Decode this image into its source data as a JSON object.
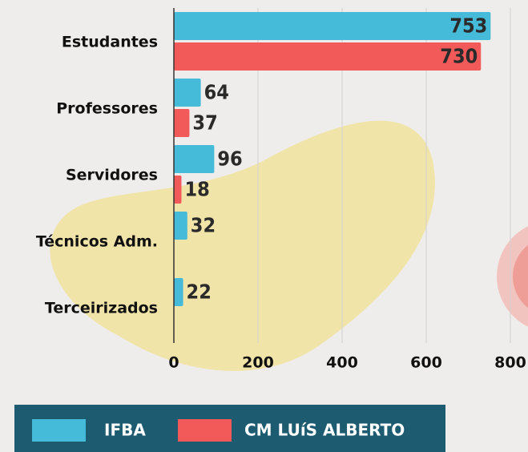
{
  "chart_data": {
    "type": "bar",
    "orientation": "horizontal",
    "categories": [
      "Estudantes",
      "Professores",
      "Servidores",
      "Técnicos Adm.",
      "Terceirizados"
    ],
    "series": [
      {
        "name": "IFBA",
        "color": "#45bbd9",
        "values": [
          753,
          64,
          96,
          32,
          22
        ]
      },
      {
        "name": "CM LUíS ALBERTO",
        "color": "#f25a5a",
        "values": [
          730,
          37,
          18,
          null,
          null
        ]
      }
    ],
    "xlim": [
      0,
      800
    ],
    "xticks": [
      0,
      200,
      400,
      600,
      800
    ],
    "grid": true
  }
}
